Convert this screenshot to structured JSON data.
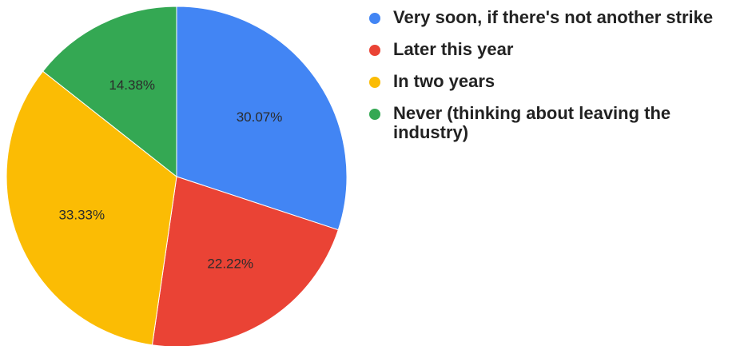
{
  "chart_data": {
    "type": "pie",
    "title": "",
    "slices": [
      {
        "label": "Very soon, if there's not another strike",
        "value": 30.07,
        "value_label": "30.07%",
        "color": "#4285f4"
      },
      {
        "label": "Later this year",
        "value": 22.22,
        "value_label": "22.22%",
        "color": "#ea4335"
      },
      {
        "label": "In two years",
        "value": 33.33,
        "value_label": "33.33%",
        "color": "#fbbc04"
      },
      {
        "label": "Never (thinking about leaving the industry)",
        "value": 14.38,
        "value_label": "14.38%",
        "color": "#34a853"
      }
    ],
    "start": "12 o'clock",
    "direction": "clockwise",
    "legend_position": "right"
  }
}
